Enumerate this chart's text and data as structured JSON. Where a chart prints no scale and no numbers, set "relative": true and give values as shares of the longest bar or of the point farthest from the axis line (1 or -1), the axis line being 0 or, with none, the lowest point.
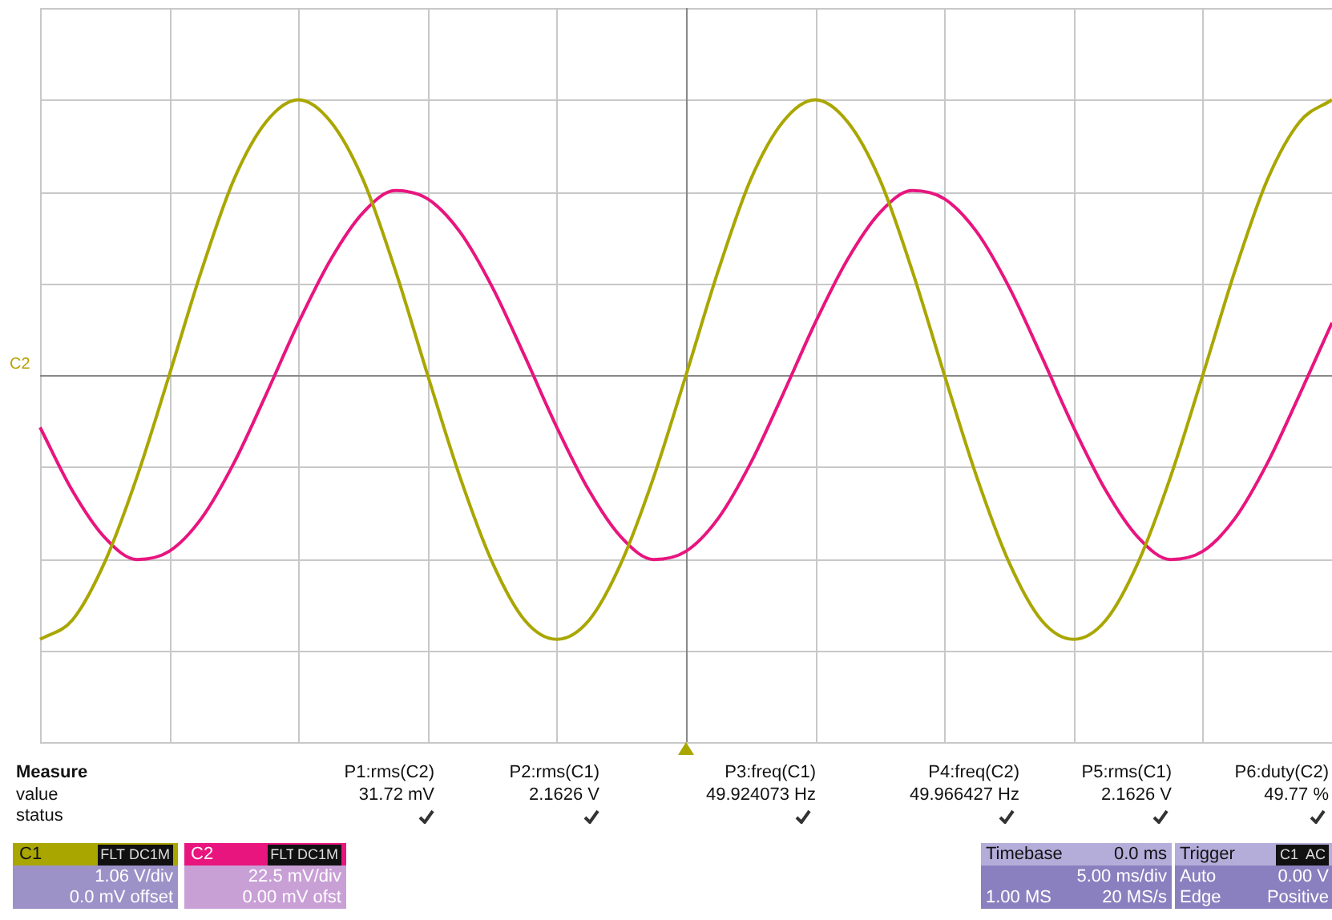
{
  "chart_data": {
    "type": "line",
    "relative": true,
    "grid": true,
    "categories": [
      null,
      null,
      null,
      null,
      null,
      null,
      null,
      null,
      null,
      null,
      null,
      null,
      null,
      null,
      null,
      null,
      null,
      null,
      null,
      null,
      null,
      null,
      null,
      null,
      null,
      null,
      null,
      null,
      null,
      null,
      null,
      null,
      null,
      null,
      null,
      null,
      null,
      null,
      null,
      null,
      null
    ],
    "series": [
      {
        "color": "#aaa600",
        "values": [
          -0.96,
          -0.89,
          -0.68,
          -0.37,
          0,
          0.38,
          0.71,
          0.92,
          1,
          0.92,
          0.71,
          0.38,
          0,
          -0.37,
          -0.68,
          -0.89,
          -0.96,
          -0.89,
          -0.68,
          -0.37,
          0,
          0.38,
          0.71,
          0.92,
          1,
          0.92,
          0.71,
          0.38,
          0,
          -0.37,
          -0.68,
          -0.89,
          -0.96,
          -0.89,
          -0.68,
          -0.37,
          0,
          0.38,
          0.71,
          0.92,
          1
        ]
      },
      {
        "color": "#e8157f",
        "values": [
          -0.19,
          -0.42,
          -0.59,
          -0.67,
          -0.64,
          -0.52,
          -0.32,
          -0.07,
          0.19,
          0.42,
          0.59,
          0.67,
          0.64,
          0.52,
          0.32,
          0.07,
          -0.19,
          -0.42,
          -0.59,
          -0.67,
          -0.64,
          -0.52,
          -0.32,
          -0.07,
          0.19,
          0.42,
          0.59,
          0.67,
          0.64,
          0.52,
          0.32,
          0.07,
          -0.19,
          -0.42,
          -0.59,
          -0.67,
          -0.64,
          -0.52,
          -0.32,
          -0.07,
          0.19
        ]
      }
    ],
    "annotations": [
      "C2",
      "Measure",
      "value",
      "status",
      "P1:rms(C2)",
      "P2:rms(C1)",
      "P3:freq(C1)",
      "P4:freq(C2)",
      "P5:rms(C1)",
      "P6:duty(C2)",
      "31.72 mV",
      "2.1626 V",
      "49.924073 Hz",
      "49.966427 Hz",
      "2.1626 V",
      "49.77 %",
      "C1",
      "FLT",
      "DC1M",
      "1.06 V/div",
      "0.0 mV offset",
      "C2",
      "FLT",
      "DC1M",
      "22.5 mV/div",
      "0.00 mV ofst",
      "Timebase",
      "0.0 ms",
      "5.00 ms/div",
      "1.00 MS",
      "20 MS/s",
      "Trigger",
      "C1",
      "AC",
      "Auto",
      "0.00 V",
      "Edge",
      "Positive"
    ]
  }
}
